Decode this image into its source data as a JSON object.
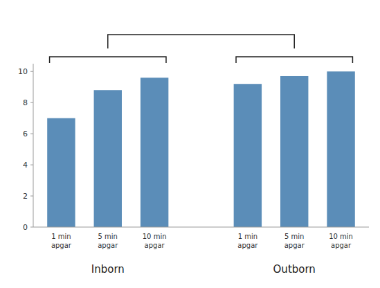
{
  "chart_data": {
    "type": "bar",
    "categories": [
      "1 min\napgar",
      "5 min\napgar",
      "10 min\napgar"
    ],
    "series": [
      {
        "name": "Inborn",
        "values": [
          7.0,
          8.8,
          9.6
        ]
      },
      {
        "name": "Outborn",
        "values": [
          9.2,
          9.7,
          10.0
        ]
      }
    ],
    "color": "#5b8db8",
    "ylim": [
      0,
      10.5
    ],
    "yticks": [
      0,
      2,
      4,
      6,
      8,
      10
    ],
    "grid": false
  }
}
